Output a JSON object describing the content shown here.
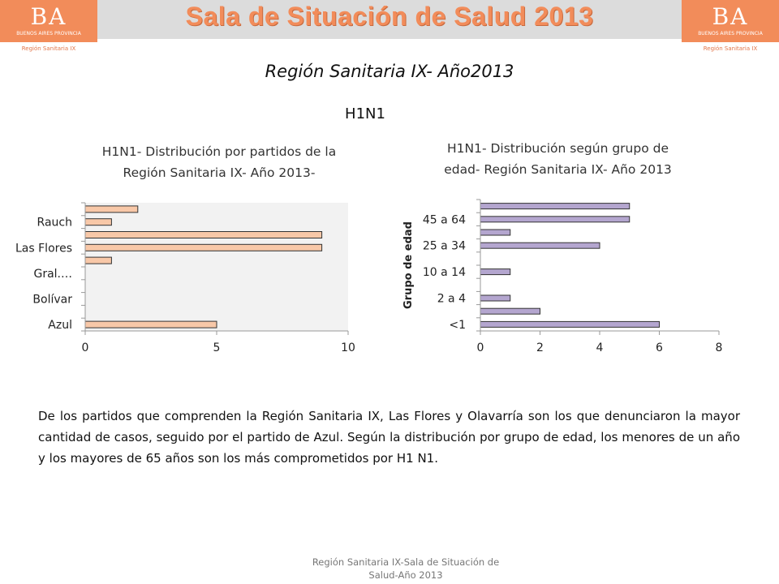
{
  "header": {
    "title": "Sala de Situación de Salud 2013",
    "logo": {
      "mark": "BA",
      "province": "BUENOS AIRES PROVINCIA",
      "region": "Región Sanitaria IX"
    },
    "colors": {
      "brand_orange": "#f28c5a",
      "banner_gray": "#dcdcdc"
    }
  },
  "page_title": "Región Sanitaria IX- Año2013",
  "section_title": "H1N1",
  "chart_data": [
    {
      "type": "bar",
      "orientation": "horizontal",
      "title": "H1N1- Distribución por partidos de la Región Sanitaria IX-  Año 2013-",
      "title_lines": [
        "H1N1- Distribución por partidos de la",
        "Región Sanitaria IX-  Año 2013-"
      ],
      "categories": [
        "Azul",
        "",
        "Bolívar",
        "",
        "Gral.…",
        "",
        "Las Flores",
        "",
        "Rauch",
        ""
      ],
      "values": [
        5,
        0,
        0,
        0,
        0,
        1,
        9,
        9,
        1,
        2
      ],
      "xlim": [
        0,
        10
      ],
      "xticks": [
        0,
        5,
        10
      ],
      "bar_color": "#f8c8a8",
      "grid": false,
      "plot_background": "#f2f2f2"
    },
    {
      "type": "bar",
      "orientation": "horizontal",
      "title": "H1N1- Distribución según grupo de edad- Región Sanitaria IX- Año 2013",
      "title_lines": [
        "H1N1- Distribución según grupo de",
        "edad- Región Sanitaria IX- Año 2013"
      ],
      "ylabel": "Grupo de edad",
      "categories": [
        "<1",
        "",
        "2 a 4",
        "",
        "10 a 14",
        "",
        "25 a 34",
        "",
        "45 a 64",
        ""
      ],
      "values": [
        6,
        2,
        1,
        0,
        1,
        0,
        4,
        1,
        5,
        5
      ],
      "xlim": [
        0,
        8
      ],
      "xticks": [
        0,
        2,
        4,
        6,
        8
      ],
      "bar_color": "#b4a6cf",
      "grid": false
    }
  ],
  "body_text": "De los partidos que comprenden la Región Sanitaria IX, Las Flores y Olavarría son los que denunciaron la mayor cantidad de casos, seguido por el partido de Azul. Según la distribución por grupo de edad, los menores de un año y los mayores de 65 años son los más comprometidos por H1 N1.",
  "footer": [
    "Región Sanitaria IX-Sala de Situación de",
    "Salud-Año 2013"
  ]
}
